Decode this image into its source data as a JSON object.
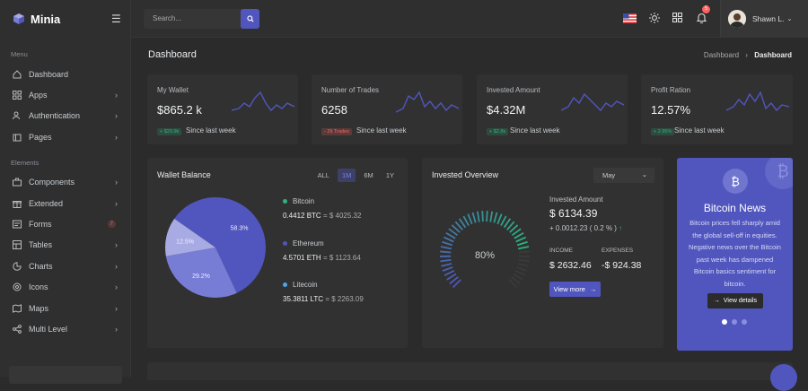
{
  "brand": {
    "name": "Minia",
    "accent": "#5156be"
  },
  "sidebar": {
    "menu_title": "Menu",
    "elements_title": "Elements",
    "items": [
      {
        "label": "Dashboard",
        "icon": "home-icon",
        "chevron": false
      },
      {
        "label": "Apps",
        "icon": "grid-icon",
        "chevron": true
      },
      {
        "label": "Authentication",
        "icon": "users-icon",
        "chevron": true
      },
      {
        "label": "Pages",
        "icon": "file-icon",
        "chevron": true
      }
    ],
    "elements": [
      {
        "label": "Components",
        "icon": "briefcase-icon",
        "chevron": true
      },
      {
        "label": "Extended",
        "icon": "gift-icon",
        "chevron": true
      },
      {
        "label": "Forms",
        "icon": "forms-icon",
        "badge": "7"
      },
      {
        "label": "Tables",
        "icon": "sliders-icon",
        "chevron": true
      },
      {
        "label": "Charts",
        "icon": "pie-chart-icon",
        "chevron": true
      },
      {
        "label": "Icons",
        "icon": "cpu-icon",
        "chevron": true
      },
      {
        "label": "Maps",
        "icon": "map-icon",
        "chevron": true
      },
      {
        "label": "Multi Level",
        "icon": "share-icon",
        "chevron": true
      }
    ]
  },
  "topbar": {
    "search_placeholder": "Search...",
    "notification_count": "5",
    "user_name": "Shawn L."
  },
  "page": {
    "title": "Dashboard",
    "breadcrumb_parent": "Dashboard",
    "breadcrumb_current": "Dashboard"
  },
  "stats": [
    {
      "label": "My Wallet",
      "value": "$865.2 k",
      "badge": "+ $20.9k",
      "badge_color": "#2ab57d",
      "since": "Since last week"
    },
    {
      "label": "Number of Trades",
      "value": "6258",
      "badge": "- 29 Trades",
      "badge_color": "#fd625e",
      "since": "Since last week"
    },
    {
      "label": "Invested Amount",
      "value": "$4.32M",
      "badge": "+ $2.8k",
      "badge_color": "#2ab57d",
      "since": "Since last week"
    },
    {
      "label": "Profit Ration",
      "value": "12.57%",
      "badge": "+ 2.95%",
      "badge_color": "#2ab57d",
      "since": "Since last week"
    }
  ],
  "wallet": {
    "title": "Wallet Balance",
    "tabs": [
      "ALL",
      "1M",
      "6M",
      "1Y"
    ],
    "active_tab": "1M",
    "coins": [
      {
        "name": "Bitcoin",
        "color": "#2ab57d",
        "amount": "0.4412 BTC",
        "usd": "= $ 4025.32"
      },
      {
        "name": "Ethereum",
        "color": "#5156be",
        "amount": "4.5701 ETH",
        "usd": "= $ 1123.64"
      },
      {
        "name": "Litecoin",
        "color": "#4ba6ef",
        "amount": "35.3811 LTC",
        "usd": "= $ 2263.09"
      }
    ]
  },
  "chart_data": {
    "type": "pie",
    "categories": [
      "Bitcoin",
      "Ethereum",
      "Litecoin"
    ],
    "values": [
      58.3,
      29.2,
      12.5
    ],
    "labels": [
      "58.3%",
      "29.2%",
      "12.5%"
    ],
    "colors": [
      "#5156be",
      "#777cd5",
      "#a8abe3"
    ]
  },
  "invested": {
    "title": "Invested Overview",
    "month": "May",
    "gauge_value": 80,
    "gauge_label": "80%",
    "amount_label": "Invested Amount",
    "amount": "$ 6134.39",
    "change": "+ 0.0012.23 ( 0.2 % )",
    "income_label": "INCOME",
    "income": "$ 2632.46",
    "expenses_label": "EXPENSES",
    "expenses": "-$ 924.38",
    "button": "View more"
  },
  "news": {
    "title": "Bitcoin News",
    "text": "Bitcoin prices fell sharply amid the global sell-off in equities. Negative news over the Bitcoin past week has dampened Bitcoin basics sentiment for bitcoin.",
    "button": "View details"
  }
}
